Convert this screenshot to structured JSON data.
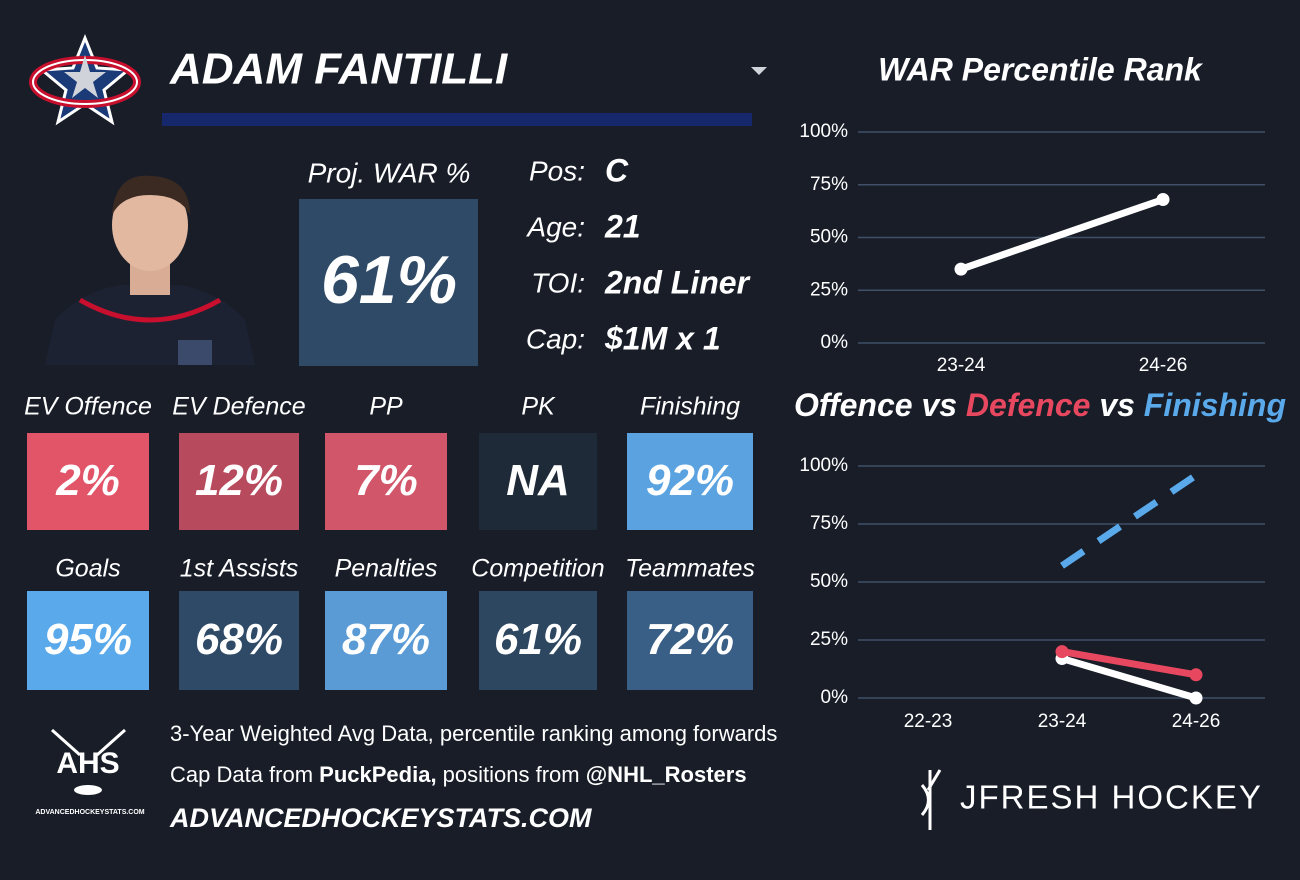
{
  "header": {
    "name": "ADAM FANTILLI"
  },
  "proj_war": {
    "label": "Proj. WAR %",
    "value": "61%"
  },
  "info": [
    {
      "label": "Pos:",
      "value": "C"
    },
    {
      "label": "Age:",
      "value": "21"
    },
    {
      "label": "TOI:",
      "value": "2nd Liner"
    },
    {
      "label": "Cap:",
      "value": "$1M x 1"
    }
  ],
  "tiles": [
    {
      "label": "EV Offence",
      "value": "2%",
      "color": "#e25569"
    },
    {
      "label": "EV Defence",
      "value": "12%",
      "color": "#b84a5e"
    },
    {
      "label": "PP",
      "value": "7%",
      "color": "#d2566a"
    },
    {
      "label": "PK",
      "value": "NA",
      "color": "#1f2a38"
    },
    {
      "label": "Finishing",
      "value": "92%",
      "color": "#5ba3e0"
    },
    {
      "label": "Goals",
      "value": "95%",
      "color": "#5aa9ea"
    },
    {
      "label": "1st Assists",
      "value": "68%",
      "color": "#2f4a66"
    },
    {
      "label": "Penalties",
      "value": "87%",
      "color": "#5a9bd6"
    },
    {
      "label": "Competition",
      "value": "61%",
      "color": "#2e4760"
    },
    {
      "label": "Teammates",
      "value": "72%",
      "color": "#3a5f86"
    }
  ],
  "footer": {
    "line1": "3-Year Weighted Avg Data, percentile ranking among forwards",
    "line2": [
      {
        "text": "Cap Data from ",
        "bold": false
      },
      {
        "text": "PuckPedia,",
        "bold": true
      },
      {
        "text": " positions from ",
        "bold": false
      },
      {
        "text": "@NHL_Rosters",
        "bold": true
      }
    ],
    "site": "ADVANCEDHOCKEYSTATS.COM",
    "ahs": "AHS",
    "ahs_site": "ADVANCEDHOCKEYSTATS.COM",
    "brand": "JFRESH HOCKEY"
  },
  "chart_data": [
    {
      "type": "line",
      "title": "WAR Percentile Rank",
      "categories": [
        "23-24",
        "24-26"
      ],
      "values": [
        35,
        68
      ],
      "color": "#ffffff",
      "ylim": [
        0,
        100
      ],
      "yticks": [
        {
          "value": 0,
          "label": "0%"
        },
        {
          "value": 25,
          "label": "25%"
        },
        {
          "value": 50,
          "label": "50%"
        },
        {
          "value": 75,
          "label": "75%"
        },
        {
          "value": 100,
          "label": "100%"
        }
      ],
      "grid": true
    },
    {
      "type": "line",
      "title_separator": "vs",
      "categories": [
        "22-23",
        "23-24",
        "24-26"
      ],
      "series": [
        {
          "name": "Offence",
          "color": "#ffffff",
          "values": [
            null,
            17,
            0
          ],
          "dashed": false
        },
        {
          "name": "Defence",
          "color": "#e8485f",
          "values": [
            null,
            20,
            10
          ],
          "dashed": false
        },
        {
          "name": "Finishing",
          "color": "#5aa9ea",
          "values": [
            null,
            57,
            96
          ],
          "dashed": true
        }
      ],
      "ylim": [
        0,
        100
      ],
      "yticks": [
        {
          "value": 0,
          "label": "0%"
        },
        {
          "value": 25,
          "label": "25%"
        },
        {
          "value": 50,
          "label": "50%"
        },
        {
          "value": 75,
          "label": "75%"
        },
        {
          "value": 100,
          "label": "100%"
        }
      ],
      "grid": true
    }
  ]
}
